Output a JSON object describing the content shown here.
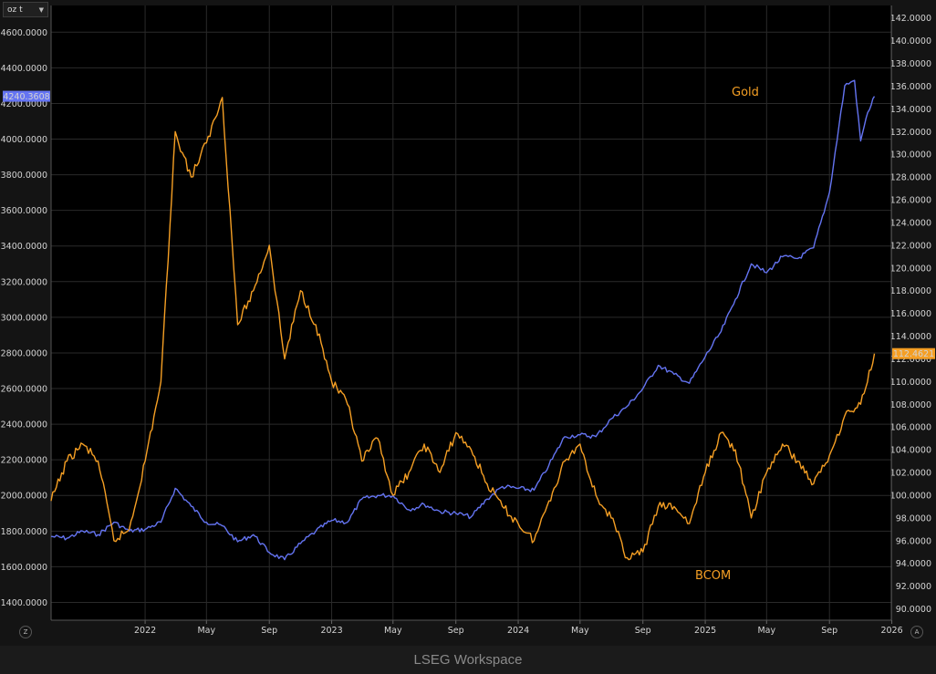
{
  "unit_selector": "oz t",
  "footer": "LSEG Workspace",
  "buttons": {
    "zoom_left": "Z",
    "zoom_right": "A"
  },
  "icons": {
    "unit_chevron": "chevron-down-icon"
  },
  "chart_data": {
    "type": "line",
    "title": "",
    "colors": {
      "Gold": "#6474f2",
      "BCOM": "#f59f24",
      "background": "#000000",
      "grid": "#2a2a2a"
    },
    "left_axis": {
      "ylim": [
        1300,
        4750
      ],
      "ticks": [
        "1400.0000",
        "1600.0000",
        "1800.0000",
        "2000.0000",
        "2200.0000",
        "2400.0000",
        "2600.0000",
        "2800.0000",
        "3000.0000",
        "3200.0000",
        "3400.0000",
        "3600.0000",
        "3800.0000",
        "4000.0000",
        "4200.0000",
        "4400.0000",
        "4600.0000"
      ],
      "last_value": "4240.3608"
    },
    "right_axis": {
      "ylim": [
        89,
        143.1
      ],
      "ticks": [
        "90.0000",
        "92.0000",
        "94.0000",
        "96.0000",
        "98.0000",
        "100.0000",
        "102.0000",
        "104.0000",
        "106.0000",
        "108.0000",
        "110.0000",
        "112.0000",
        "114.0000",
        "116.0000",
        "118.0000",
        "120.0000",
        "122.0000",
        "124.0000",
        "126.0000",
        "128.0000",
        "130.0000",
        "132.0000",
        "134.0000",
        "136.0000",
        "138.0000",
        "140.0000",
        "142.0000"
      ],
      "last_value": "112.4621"
    },
    "x_axis": {
      "range": [
        "2021-07-01",
        "2025-12-31"
      ],
      "ticks": [
        {
          "label": "2022",
          "date": "2022-01-01"
        },
        {
          "label": "May",
          "date": "2022-05-01"
        },
        {
          "label": "Sep",
          "date": "2022-09-01"
        },
        {
          "label": "2023",
          "date": "2023-01-01"
        },
        {
          "label": "May",
          "date": "2023-05-01"
        },
        {
          "label": "Sep",
          "date": "2023-09-01"
        },
        {
          "label": "2024",
          "date": "2024-01-01"
        },
        {
          "label": "May",
          "date": "2024-05-01"
        },
        {
          "label": "Sep",
          "date": "2024-09-01"
        },
        {
          "label": "2025",
          "date": "2025-01-01"
        },
        {
          "label": "May",
          "date": "2025-05-01"
        },
        {
          "label": "Sep",
          "date": "2025-09-01"
        },
        {
          "label": "2026",
          "date": "2026-01-01"
        }
      ]
    },
    "grid": true,
    "series": [
      {
        "name": "Gold",
        "axis": "left",
        "label_position": "top-right",
        "points": [
          [
            "2021-07-01",
            1770
          ],
          [
            "2021-08-01",
            1760
          ],
          [
            "2021-09-01",
            1800
          ],
          [
            "2021-10-01",
            1780
          ],
          [
            "2021-11-01",
            1850
          ],
          [
            "2021-12-01",
            1800
          ],
          [
            "2022-01-01",
            1810
          ],
          [
            "2022-02-01",
            1850
          ],
          [
            "2022-03-01",
            2040
          ],
          [
            "2022-04-01",
            1940
          ],
          [
            "2022-05-01",
            1850
          ],
          [
            "2022-06-01",
            1830
          ],
          [
            "2022-07-01",
            1740
          ],
          [
            "2022-08-01",
            1780
          ],
          [
            "2022-09-01",
            1680
          ],
          [
            "2022-10-01",
            1640
          ],
          [
            "2022-11-01",
            1730
          ],
          [
            "2022-12-01",
            1800
          ],
          [
            "2023-01-01",
            1860
          ],
          [
            "2023-02-01",
            1850
          ],
          [
            "2023-03-01",
            1980
          ],
          [
            "2023-04-01",
            2000
          ],
          [
            "2023-05-01",
            2000
          ],
          [
            "2023-06-01",
            1920
          ],
          [
            "2023-07-01",
            1950
          ],
          [
            "2023-08-01",
            1910
          ],
          [
            "2023-09-01",
            1900
          ],
          [
            "2023-10-01",
            1880
          ],
          [
            "2023-11-01",
            1980
          ],
          [
            "2023-12-01",
            2050
          ],
          [
            "2024-01-01",
            2040
          ],
          [
            "2024-02-01",
            2030
          ],
          [
            "2024-03-01",
            2170
          ],
          [
            "2024-04-01",
            2330
          ],
          [
            "2024-05-01",
            2340
          ],
          [
            "2024-06-01",
            2330
          ],
          [
            "2024-07-01",
            2430
          ],
          [
            "2024-08-01",
            2500
          ],
          [
            "2024-09-01",
            2600
          ],
          [
            "2024-10-01",
            2730
          ],
          [
            "2024-11-01",
            2680
          ],
          [
            "2024-12-01",
            2630
          ],
          [
            "2025-01-01",
            2780
          ],
          [
            "2025-02-01",
            2920
          ],
          [
            "2025-03-01",
            3100
          ],
          [
            "2025-04-01",
            3300
          ],
          [
            "2025-05-01",
            3250
          ],
          [
            "2025-06-01",
            3340
          ],
          [
            "2025-07-01",
            3330
          ],
          [
            "2025-08-01",
            3390
          ],
          [
            "2025-09-01",
            3700
          ],
          [
            "2025-10-01",
            4300
          ],
          [
            "2025-10-20",
            4330
          ],
          [
            "2025-11-01",
            3990
          ],
          [
            "2025-11-15",
            4150
          ],
          [
            "2025-11-28",
            4240
          ]
        ]
      },
      {
        "name": "BCOM",
        "axis": "right",
        "label_position": "bottom-right",
        "points": [
          [
            "2021-07-01",
            99.5
          ],
          [
            "2021-08-01",
            103
          ],
          [
            "2021-09-01",
            104.5
          ],
          [
            "2021-10-01",
            103
          ],
          [
            "2021-11-01",
            96
          ],
          [
            "2021-12-01",
            97
          ],
          [
            "2022-01-01",
            103
          ],
          [
            "2022-02-01",
            110
          ],
          [
            "2022-03-01",
            132
          ],
          [
            "2022-04-01",
            128
          ],
          [
            "2022-05-01",
            131
          ],
          [
            "2022-06-01",
            135
          ],
          [
            "2022-07-01",
            115
          ],
          [
            "2022-08-01",
            118
          ],
          [
            "2022-09-01",
            122
          ],
          [
            "2022-10-01",
            112
          ],
          [
            "2022-11-01",
            118
          ],
          [
            "2022-12-01",
            115
          ],
          [
            "2023-01-01",
            110
          ],
          [
            "2023-02-01",
            108
          ],
          [
            "2023-03-01",
            103
          ],
          [
            "2023-04-01",
            105
          ],
          [
            "2023-05-01",
            100
          ],
          [
            "2023-06-01",
            102
          ],
          [
            "2023-07-01",
            104.5
          ],
          [
            "2023-08-01",
            102
          ],
          [
            "2023-09-01",
            105.5
          ],
          [
            "2023-10-01",
            104
          ],
          [
            "2023-11-01",
            101
          ],
          [
            "2023-12-01",
            99
          ],
          [
            "2024-01-01",
            97.5
          ],
          [
            "2024-02-01",
            96
          ],
          [
            "2024-03-01",
            99.5
          ],
          [
            "2024-04-01",
            103
          ],
          [
            "2024-05-01",
            104.5
          ],
          [
            "2024-06-01",
            100
          ],
          [
            "2024-07-01",
            98
          ],
          [
            "2024-08-01",
            94.5
          ],
          [
            "2024-09-01",
            95
          ],
          [
            "2024-10-01",
            99
          ],
          [
            "2024-11-01",
            99
          ],
          [
            "2024-12-01",
            97.5
          ],
          [
            "2025-01-01",
            102
          ],
          [
            "2025-02-01",
            105.5
          ],
          [
            "2025-03-01",
            104
          ],
          [
            "2025-04-01",
            98
          ],
          [
            "2025-05-01",
            102
          ],
          [
            "2025-06-01",
            104.5
          ],
          [
            "2025-07-01",
            103
          ],
          [
            "2025-08-01",
            101
          ],
          [
            "2025-09-01",
            103.5
          ],
          [
            "2025-10-01",
            107
          ],
          [
            "2025-11-01",
            108
          ],
          [
            "2025-11-28",
            112.4621
          ]
        ]
      }
    ]
  }
}
